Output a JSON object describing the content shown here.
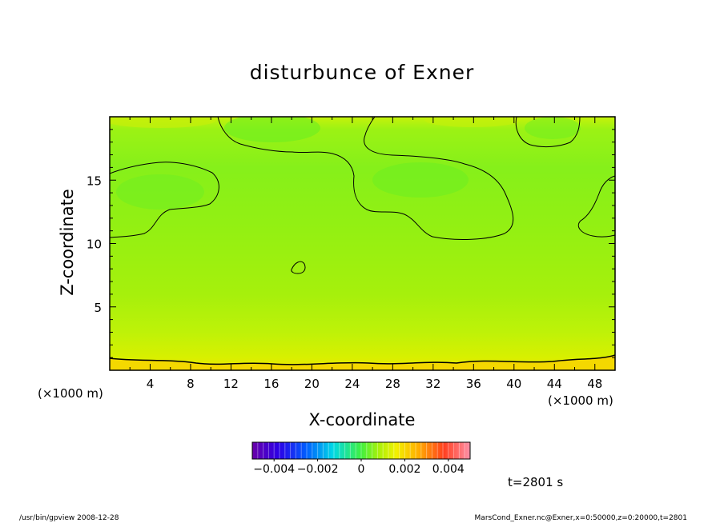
{
  "chart_data": {
    "type": "heatmap",
    "title": "disturbunce of Exner",
    "xlabel": "X-coordinate",
    "ylabel": "Z-coordinate",
    "x_unit": "(×1000 m)",
    "xlim": [
      0,
      50
    ],
    "ylim": [
      0,
      20
    ],
    "x_ticks": [
      4,
      8,
      12,
      16,
      20,
      24,
      28,
      32,
      36,
      40,
      44,
      48
    ],
    "y_ticks": [
      5,
      10,
      15
    ],
    "colorbar": {
      "range": [
        -0.005,
        0.005
      ],
      "tick_values": [
        -0.004,
        -0.002,
        0,
        0.002,
        0.004
      ],
      "tick_labels": [
        "−0.004",
        "−0.002",
        "0",
        "0.002",
        "0.004"
      ],
      "colormap": "rainbow (purple → blue → cyan → green → yellow → red)"
    },
    "contour_levels": [
      0
    ]
  },
  "annotations": {
    "time": "t=2801 s",
    "footer_left": "/usr/bin/gpview   2008-12-28",
    "footer_right": "MarsCond_Exner.nc@Exner,x=0:50000,z=0:20000,t=2801"
  },
  "colors": {
    "background": "#ffffff",
    "axis": "#000000",
    "field_low": "#7df21a",
    "field_mid": "#a8f20a",
    "field_high": "#f5e600"
  }
}
